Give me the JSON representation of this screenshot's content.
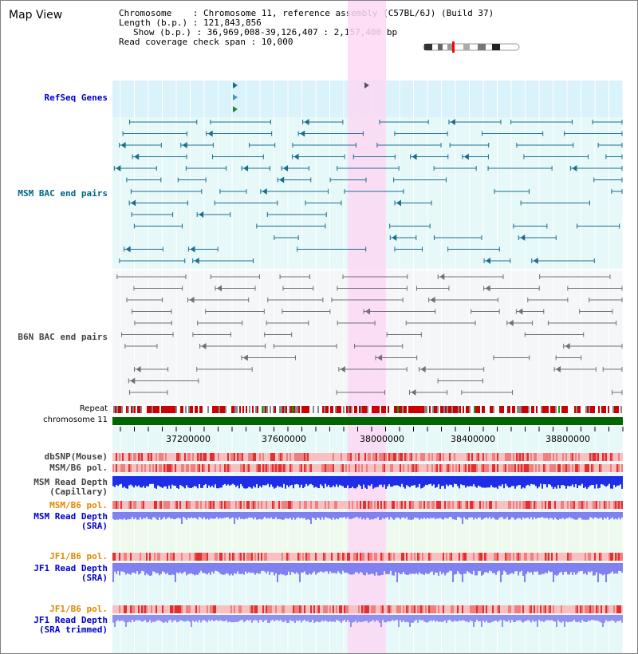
{
  "title": "Map View",
  "info": {
    "chromosome": "Chromosome    : Chromosome 11, reference assembly (C57BL/6J) (Build 37)",
    "length": "Length (b.p.) : 121,843,856",
    "show": "Show (b.p.) : 36,969,008-39,126,407 : 2,157,400 bp",
    "read_coverage": "Read coverage check span : 10,000"
  },
  "tracks": {
    "refseq": "RefSeq Genes",
    "msm_bac": "MSM BAC end pairs",
    "b6n_bac": "B6N BAC end pairs",
    "repeat": "Repeat",
    "chromosome": "chromosome 11",
    "dbsnp": "dbSNP(Mouse)",
    "msm_b6_pol_1": "MSM/B6 pol.",
    "msm_read_depth_cap_1": "MSM Read Depth",
    "msm_read_depth_cap_2": "(Capillary)",
    "msm_b6_pol_2": "MSM/B6 pol.",
    "msm_read_depth_sra_1": "MSM Read Depth",
    "msm_read_depth_sra_2": "(SRA)",
    "jf1_b6_pol_1": "JF1/B6 pol.",
    "jf1_read_depth_sra_1": "JF1 Read Depth",
    "jf1_read_depth_sra_2": "(SRA)",
    "jf1_b6_pol_2": "JF1/B6 pol.",
    "jf1_read_depth_trim_1": "JF1 Read Depth",
    "jf1_read_depth_trim_2": "(SRA trimmed)"
  },
  "axis": {
    "ticks": [
      "37200000",
      "37600000",
      "38000000",
      "38400000",
      "38800000"
    ]
  },
  "colors": {
    "refseq_bg": "#daf2fa",
    "msm_bac_bg": "#e6f8f8",
    "b6n_bac_bg": "#f4f6f8",
    "highlight": "#fcd8f4",
    "msm_bac_line": "#1a6e8e",
    "b6n_bac_line": "#707070",
    "chromosome_bar": "#006600",
    "cap_depth": "#1f2ee6",
    "sra_depth": "#8080f0",
    "pol_stripe": "#f08080",
    "label_blue": "#0000cc",
    "label_orange": "#e08800",
    "label_teal": "#006688"
  }
}
